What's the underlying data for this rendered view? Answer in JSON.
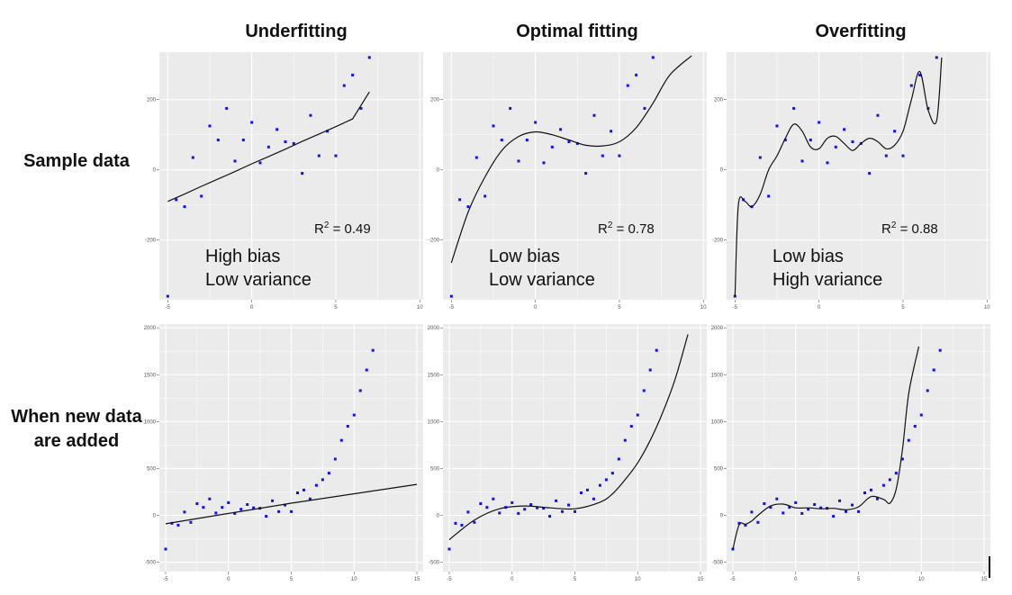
{
  "columns": [
    "Underfitting",
    "Optimal fitting",
    "Overfitting"
  ],
  "rows": [
    "Sample data",
    "When new data are added"
  ],
  "annotations": [
    {
      "r2": "= 0.49",
      "bias": "High bias",
      "variance": "Low variance"
    },
    {
      "r2": "= 0.78",
      "bias": "Low bias",
      "variance": "Low variance"
    },
    {
      "r2": "= 0.88",
      "bias": "Low bias",
      "variance": "High variance"
    }
  ],
  "r2_label": "R",
  "r2_sup": "2",
  "chart_data": [
    {
      "type": "scatter",
      "title": "Underfitting",
      "row": "Sample data",
      "fit": "linear",
      "xlim": [
        -5.5,
        10.2
      ],
      "ylim": [
        -370,
        335
      ],
      "xticks": [
        -5,
        0,
        5,
        10
      ],
      "yticks": [
        -200,
        0,
        200
      ],
      "points": [
        [
          -5,
          -360
        ],
        [
          -4.5,
          -85
        ],
        [
          -4,
          -105
        ],
        [
          -3.5,
          35
        ],
        [
          -3,
          -75
        ],
        [
          -2.5,
          125
        ],
        [
          -2,
          85
        ],
        [
          -1.5,
          175
        ],
        [
          -1,
          25
        ],
        [
          -0.5,
          85
        ],
        [
          0,
          135
        ],
        [
          0.5,
          20
        ],
        [
          1,
          65
        ],
        [
          1.5,
          115
        ],
        [
          2,
          80
        ],
        [
          2.5,
          75
        ],
        [
          3,
          -10
        ],
        [
          3.5,
          155
        ],
        [
          4,
          40
        ],
        [
          4.5,
          110
        ],
        [
          5,
          40
        ],
        [
          5.5,
          240
        ],
        [
          6,
          270
        ],
        [
          6.5,
          175
        ],
        [
          7,
          320
        ]
      ],
      "fit_points": [
        [
          -5,
          -90
        ],
        [
          -4,
          -69
        ],
        [
          -3,
          -47
        ],
        [
          -2,
          -26
        ],
        [
          -1,
          -5
        ],
        [
          0,
          17
        ],
        [
          1,
          38
        ],
        [
          2,
          59
        ],
        [
          3,
          81
        ],
        [
          4,
          102
        ],
        [
          5,
          123
        ],
        [
          6,
          145
        ],
        [
          7,
          222
        ]
      ]
    },
    {
      "type": "scatter",
      "title": "Optimal fitting",
      "row": "Sample data",
      "fit": "polynomial",
      "xlim": [
        -5.5,
        10.2
      ],
      "ylim": [
        -370,
        335
      ],
      "xticks": [
        -5,
        0,
        5,
        10
      ],
      "yticks": [
        -200,
        0,
        200
      ],
      "points": [
        [
          -5,
          -360
        ],
        [
          -4.5,
          -85
        ],
        [
          -4,
          -105
        ],
        [
          -3.5,
          35
        ],
        [
          -3,
          -75
        ],
        [
          -2.5,
          125
        ],
        [
          -2,
          85
        ],
        [
          -1.5,
          175
        ],
        [
          -1,
          25
        ],
        [
          -0.5,
          85
        ],
        [
          0,
          135
        ],
        [
          0.5,
          20
        ],
        [
          1,
          65
        ],
        [
          1.5,
          115
        ],
        [
          2,
          80
        ],
        [
          2.5,
          75
        ],
        [
          3,
          -10
        ],
        [
          3.5,
          155
        ],
        [
          4,
          40
        ],
        [
          4.5,
          110
        ],
        [
          5,
          40
        ],
        [
          5.5,
          240
        ],
        [
          6,
          270
        ],
        [
          6.5,
          175
        ],
        [
          7,
          320
        ]
      ],
      "fit_points": [
        [
          -5,
          -265
        ],
        [
          -4,
          -120
        ],
        [
          -3,
          -20
        ],
        [
          -2,
          55
        ],
        [
          -1,
          95
        ],
        [
          0,
          108
        ],
        [
          1,
          100
        ],
        [
          2,
          85
        ],
        [
          3,
          70
        ],
        [
          4,
          68
        ],
        [
          5,
          80
        ],
        [
          6,
          120
        ],
        [
          7,
          190
        ],
        [
          8,
          270
        ],
        [
          9.3,
          325
        ]
      ]
    },
    {
      "type": "scatter",
      "title": "Overfitting",
      "row": "Sample data",
      "fit": "high-degree polynomial",
      "xlim": [
        -5.5,
        10.2
      ],
      "ylim": [
        -370,
        335
      ],
      "xticks": [
        -5,
        0,
        5,
        10
      ],
      "yticks": [
        -200,
        0,
        200
      ],
      "points": [
        [
          -5,
          -360
        ],
        [
          -4.5,
          -85
        ],
        [
          -4,
          -105
        ],
        [
          -3.5,
          35
        ],
        [
          -3,
          -75
        ],
        [
          -2.5,
          125
        ],
        [
          -2,
          85
        ],
        [
          -1.5,
          175
        ],
        [
          -1,
          25
        ],
        [
          -0.5,
          85
        ],
        [
          0,
          135
        ],
        [
          0.5,
          20
        ],
        [
          1,
          65
        ],
        [
          1.5,
          115
        ],
        [
          2,
          80
        ],
        [
          2.5,
          75
        ],
        [
          3,
          -10
        ],
        [
          3.5,
          155
        ],
        [
          4,
          40
        ],
        [
          4.5,
          110
        ],
        [
          5,
          40
        ],
        [
          5.5,
          240
        ],
        [
          6,
          270
        ],
        [
          6.5,
          175
        ],
        [
          7,
          320
        ]
      ],
      "fit_points": [
        [
          -5,
          -360
        ],
        [
          -4.8,
          -100
        ],
        [
          -4.4,
          -90
        ],
        [
          -4,
          -105
        ],
        [
          -3.5,
          -70
        ],
        [
          -3,
          0
        ],
        [
          -2.5,
          40
        ],
        [
          -2,
          90
        ],
        [
          -1.5,
          130
        ],
        [
          -1,
          110
        ],
        [
          -0.5,
          65
        ],
        [
          0,
          60
        ],
        [
          0.5,
          90
        ],
        [
          1,
          95
        ],
        [
          1.5,
          75
        ],
        [
          2,
          55
        ],
        [
          2.5,
          75
        ],
        [
          3,
          90
        ],
        [
          3.5,
          80
        ],
        [
          4,
          60
        ],
        [
          4.5,
          70
        ],
        [
          5,
          110
        ],
        [
          5.5,
          200
        ],
        [
          6,
          280
        ],
        [
          6.5,
          170
        ],
        [
          7,
          140
        ],
        [
          7.3,
          320
        ]
      ]
    },
    {
      "type": "scatter",
      "title": "Underfitting",
      "row": "When new data are added",
      "fit": "linear",
      "xlim": [
        -5.5,
        15.5
      ],
      "ylim": [
        -600,
        2040
      ],
      "xticks": [
        -5,
        0,
        5,
        10,
        15
      ],
      "yticks": [
        -500,
        0,
        500,
        1000,
        1500,
        2000
      ],
      "points": [
        [
          -5,
          -360
        ],
        [
          -4.5,
          -85
        ],
        [
          -4,
          -105
        ],
        [
          -3.5,
          35
        ],
        [
          -3,
          -75
        ],
        [
          -2.5,
          125
        ],
        [
          -2,
          85
        ],
        [
          -1.5,
          175
        ],
        [
          -1,
          25
        ],
        [
          -0.5,
          85
        ],
        [
          0,
          135
        ],
        [
          0.5,
          20
        ],
        [
          1,
          65
        ],
        [
          1.5,
          115
        ],
        [
          2,
          80
        ],
        [
          2.5,
          75
        ],
        [
          3,
          -10
        ],
        [
          3.5,
          155
        ],
        [
          4,
          40
        ],
        [
          4.5,
          110
        ],
        [
          5,
          40
        ],
        [
          5.5,
          240
        ],
        [
          6,
          270
        ],
        [
          6.5,
          175
        ],
        [
          7,
          320
        ],
        [
          7.5,
          380
        ],
        [
          8,
          450
        ],
        [
          8.5,
          600
        ],
        [
          9,
          800
        ],
        [
          9.5,
          950
        ],
        [
          10,
          1070
        ],
        [
          10.5,
          1330
        ],
        [
          11,
          1550
        ],
        [
          11.5,
          1760
        ]
      ],
      "fit_points": [
        [
          -5,
          -90
        ],
        [
          0,
          20
        ],
        [
          5,
          130
        ],
        [
          15,
          330
        ]
      ]
    },
    {
      "type": "scatter",
      "title": "Optimal fitting",
      "row": "When new data are added",
      "fit": "polynomial",
      "xlim": [
        -5.5,
        15.5
      ],
      "ylim": [
        -600,
        2040
      ],
      "xticks": [
        -5,
        0,
        5,
        10,
        15
      ],
      "yticks": [
        -500,
        0,
        500,
        1000,
        1500,
        2000
      ],
      "points": [
        [
          -5,
          -360
        ],
        [
          -4.5,
          -85
        ],
        [
          -4,
          -105
        ],
        [
          -3.5,
          35
        ],
        [
          -3,
          -75
        ],
        [
          -2.5,
          125
        ],
        [
          -2,
          85
        ],
        [
          -1.5,
          175
        ],
        [
          -1,
          25
        ],
        [
          -0.5,
          85
        ],
        [
          0,
          135
        ],
        [
          0.5,
          20
        ],
        [
          1,
          65
        ],
        [
          1.5,
          115
        ],
        [
          2,
          80
        ],
        [
          2.5,
          75
        ],
        [
          3,
          -10
        ],
        [
          3.5,
          155
        ],
        [
          4,
          40
        ],
        [
          4.5,
          110
        ],
        [
          5,
          40
        ],
        [
          5.5,
          240
        ],
        [
          6,
          270
        ],
        [
          6.5,
          175
        ],
        [
          7,
          320
        ],
        [
          7.5,
          380
        ],
        [
          8,
          450
        ],
        [
          8.5,
          600
        ],
        [
          9,
          800
        ],
        [
          9.5,
          950
        ],
        [
          10,
          1070
        ],
        [
          10.5,
          1330
        ],
        [
          11,
          1550
        ],
        [
          11.5,
          1760
        ]
      ],
      "fit_points": [
        [
          -5,
          -260
        ],
        [
          -3,
          -50
        ],
        [
          -1,
          70
        ],
        [
          1,
          100
        ],
        [
          3,
          80
        ],
        [
          5,
          70
        ],
        [
          7,
          140
        ],
        [
          8,
          230
        ],
        [
          9,
          380
        ],
        [
          10,
          560
        ],
        [
          11,
          800
        ],
        [
          12,
          1100
        ],
        [
          13,
          1460
        ],
        [
          14,
          1930
        ]
      ]
    },
    {
      "type": "scatter",
      "title": "Overfitting",
      "row": "When new data are added",
      "fit": "high-degree polynomial",
      "xlim": [
        -5.5,
        15.5
      ],
      "ylim": [
        -600,
        2040
      ],
      "xticks": [
        -5,
        0,
        5,
        10,
        15
      ],
      "yticks": [
        -500,
        0,
        500,
        1000,
        1500,
        2000
      ],
      "points": [
        [
          -5,
          -360
        ],
        [
          -4.5,
          -85
        ],
        [
          -4,
          -105
        ],
        [
          -3.5,
          35
        ],
        [
          -3,
          -75
        ],
        [
          -2.5,
          125
        ],
        [
          -2,
          85
        ],
        [
          -1.5,
          175
        ],
        [
          -1,
          25
        ],
        [
          -0.5,
          85
        ],
        [
          0,
          135
        ],
        [
          0.5,
          20
        ],
        [
          1,
          65
        ],
        [
          1.5,
          115
        ],
        [
          2,
          80
        ],
        [
          2.5,
          75
        ],
        [
          3,
          -10
        ],
        [
          3.5,
          155
        ],
        [
          4,
          40
        ],
        [
          4.5,
          110
        ],
        [
          5,
          40
        ],
        [
          5.5,
          240
        ],
        [
          6,
          270
        ],
        [
          6.5,
          175
        ],
        [
          7,
          320
        ],
        [
          7.5,
          380
        ],
        [
          8,
          450
        ],
        [
          8.5,
          600
        ],
        [
          9,
          800
        ],
        [
          9.5,
          950
        ],
        [
          10,
          1070
        ],
        [
          10.5,
          1330
        ],
        [
          11,
          1550
        ],
        [
          11.5,
          1760
        ]
      ],
      "fit_points": [
        [
          -5,
          -360
        ],
        [
          -4.5,
          -100
        ],
        [
          -4,
          -95
        ],
        [
          -3.5,
          -60
        ],
        [
          -3,
          0
        ],
        [
          -2,
          100
        ],
        [
          -1,
          120
        ],
        [
          0,
          80
        ],
        [
          1,
          80
        ],
        [
          2,
          70
        ],
        [
          3,
          75
        ],
        [
          4,
          60
        ],
        [
          5,
          90
        ],
        [
          6,
          200
        ],
        [
          7,
          170
        ],
        [
          7.5,
          130
        ],
        [
          8,
          280
        ],
        [
          8.5,
          700
        ],
        [
          9,
          1300
        ],
        [
          9.8,
          1800
        ]
      ]
    }
  ]
}
